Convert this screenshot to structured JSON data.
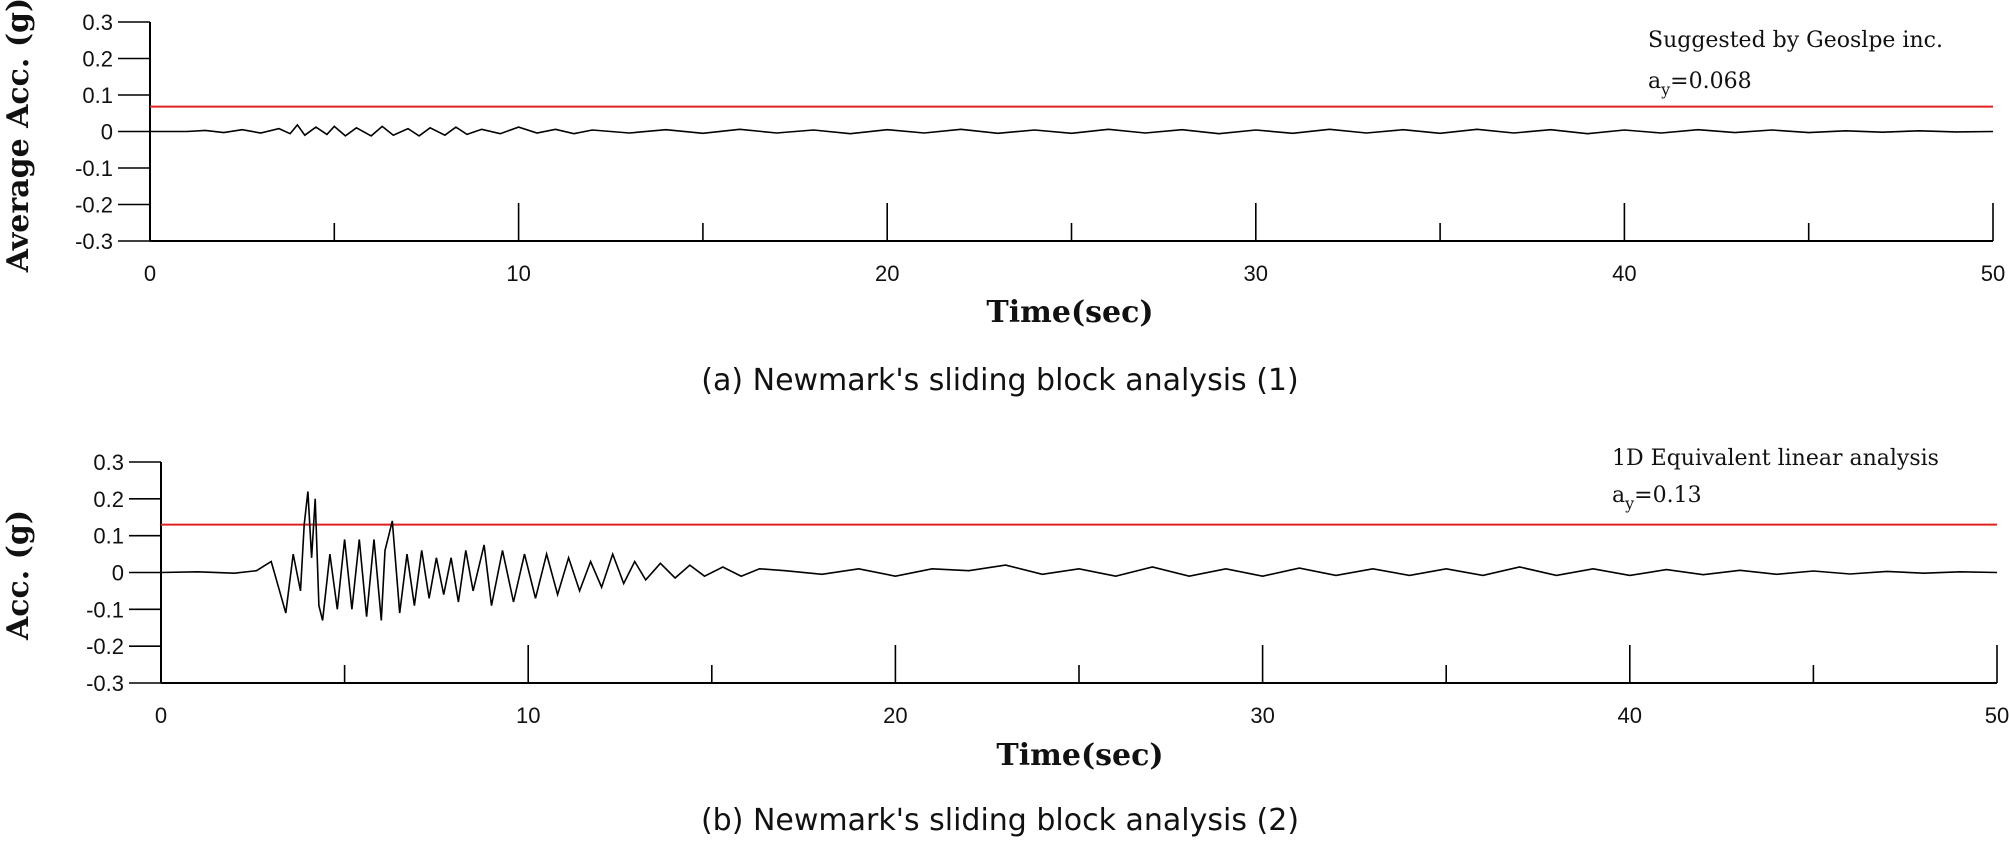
{
  "chart_data": [
    {
      "type": "line",
      "caption": "(a) Newmark's sliding block analysis (1)",
      "xlabel": "Time(sec)",
      "ylabel": "Average Acc. (g)",
      "xlim": [
        0,
        50
      ],
      "ylim": [
        -0.3,
        0.3
      ],
      "xticks": [
        0,
        10,
        20,
        30,
        40,
        50
      ],
      "yticks": [
        "0.3",
        "0.2",
        "0.1",
        "0",
        "-0.1",
        "-0.2",
        "-0.3"
      ],
      "annotation": {
        "line1": "Suggested by Geoslpe inc.",
        "line2_prefix": "a",
        "line2_sub": "y",
        "line2_value": "=0.068"
      },
      "threshold": {
        "value": 0.068,
        "color": "#e02020"
      },
      "series": [
        {
          "color": "#000000",
          "x": [
            0,
            1,
            1.5,
            2,
            2.5,
            3,
            3.5,
            3.8,
            4,
            4.2,
            4.5,
            4.8,
            5,
            5.3,
            5.6,
            6,
            6.3,
            6.6,
            7,
            7.3,
            7.6,
            8,
            8.3,
            8.6,
            9,
            9.5,
            10,
            10.5,
            11,
            11.5,
            12,
            13,
            14,
            15,
            16,
            17,
            18,
            19,
            20,
            21,
            22,
            23,
            24,
            25,
            26,
            27,
            28,
            29,
            30,
            31,
            32,
            33,
            34,
            35,
            36,
            37,
            38,
            39,
            40,
            41,
            42,
            43,
            44,
            45,
            46,
            47,
            48,
            49,
            50
          ],
          "y": [
            0,
            0,
            0.003,
            -0.003,
            0.005,
            -0.004,
            0.008,
            -0.006,
            0.018,
            -0.01,
            0.012,
            -0.008,
            0.014,
            -0.012,
            0.01,
            -0.012,
            0.014,
            -0.01,
            0.008,
            -0.012,
            0.01,
            -0.01,
            0.012,
            -0.008,
            0.006,
            -0.006,
            0.012,
            -0.004,
            0.006,
            -0.006,
            0.004,
            -0.004,
            0.005,
            -0.005,
            0.006,
            -0.004,
            0.004,
            -0.006,
            0.005,
            -0.004,
            0.006,
            -0.005,
            0.004,
            -0.005,
            0.006,
            -0.004,
            0.005,
            -0.006,
            0.004,
            -0.005,
            0.006,
            -0.004,
            0.005,
            -0.005,
            0.006,
            -0.004,
            0.005,
            -0.006,
            0.004,
            -0.004,
            0.005,
            -0.003,
            0.004,
            -0.003,
            0.002,
            -0.002,
            0.002,
            -0.001,
            0
          ]
        }
      ]
    },
    {
      "type": "line",
      "caption": "(b) Newmark's sliding block analysis (2)",
      "xlabel": "Time(sec)",
      "ylabel": "Acc. (g)",
      "xlim": [
        0,
        50
      ],
      "ylim": [
        -0.3,
        0.3
      ],
      "xticks": [
        0,
        10,
        20,
        30,
        40,
        50
      ],
      "yticks": [
        "0.3",
        "0.2",
        "0.1",
        "0",
        "-0.1",
        "-0.2",
        "-0.3"
      ],
      "annotation": {
        "line1": "1D Equivalent linear analysis",
        "line2_prefix": "a",
        "line2_sub": "y",
        "line2_value": "=0.13"
      },
      "threshold": {
        "value": 0.13,
        "color": "#e02020"
      },
      "series": [
        {
          "color": "#000000",
          "x": [
            0,
            1,
            2,
            2.6,
            3,
            3.2,
            3.4,
            3.6,
            3.8,
            3.9,
            4,
            4.1,
            4.2,
            4.3,
            4.4,
            4.6,
            4.8,
            5,
            5.2,
            5.4,
            5.6,
            5.8,
            6,
            6.1,
            6.2,
            6.3,
            6.5,
            6.7,
            6.9,
            7.1,
            7.3,
            7.5,
            7.7,
            7.9,
            8.1,
            8.3,
            8.5,
            8.8,
            9,
            9.3,
            9.6,
            9.9,
            10.2,
            10.5,
            10.8,
            11.1,
            11.4,
            11.7,
            12,
            12.3,
            12.6,
            12.9,
            13.2,
            13.6,
            14,
            14.4,
            14.8,
            15.3,
            15.8,
            16.3,
            17,
            18,
            19,
            20,
            21,
            22,
            23,
            24,
            25,
            26,
            27,
            28,
            29,
            30,
            31,
            32,
            33,
            34,
            35,
            36,
            37,
            38,
            39,
            40,
            41,
            42,
            43,
            44,
            45,
            46,
            47,
            48,
            49,
            50
          ],
          "y": [
            0,
            0.002,
            -0.002,
            0.005,
            0.03,
            -0.04,
            -0.11,
            0.05,
            -0.05,
            0.13,
            0.22,
            0.04,
            0.2,
            -0.09,
            -0.13,
            0.05,
            -0.1,
            0.09,
            -0.1,
            0.09,
            -0.12,
            0.09,
            -0.13,
            0.06,
            0.1,
            0.14,
            -0.11,
            0.05,
            -0.09,
            0.06,
            -0.07,
            0.04,
            -0.06,
            0.04,
            -0.08,
            0.06,
            -0.05,
            0.075,
            -0.09,
            0.06,
            -0.08,
            0.05,
            -0.07,
            0.05,
            -0.06,
            0.04,
            -0.05,
            0.03,
            -0.04,
            0.05,
            -0.03,
            0.03,
            -0.02,
            0.025,
            -0.015,
            0.02,
            -0.01,
            0.015,
            -0.01,
            0.01,
            0.005,
            -0.005,
            0.01,
            -0.01,
            0.01,
            0.005,
            0.02,
            -0.005,
            0.01,
            -0.01,
            0.015,
            -0.01,
            0.01,
            -0.01,
            0.012,
            -0.008,
            0.01,
            -0.008,
            0.01,
            -0.008,
            0.015,
            -0.008,
            0.01,
            -0.008,
            0.008,
            -0.006,
            0.006,
            -0.005,
            0.004,
            -0.004,
            0.003,
            -0.002,
            0.002,
            0
          ]
        }
      ]
    }
  ]
}
